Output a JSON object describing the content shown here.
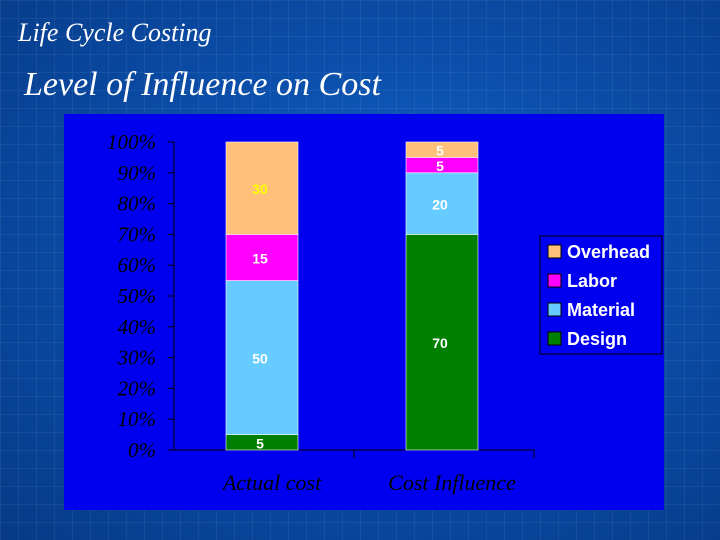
{
  "header": {
    "section_title": "Life Cycle Costing",
    "slide_title": "Level of Influence on Cost"
  },
  "colors": {
    "background": "#0b4eaa",
    "plot_area": "#0000ee",
    "overhead": "#ffc07a",
    "labor": "#ff00ff",
    "material": "#66ccff",
    "design": "#008000",
    "data_label": "#ffffff",
    "overhead_label": "#ffff00"
  },
  "chart_data": {
    "type": "bar",
    "stacked": true,
    "title": "Level of Influence on Cost",
    "categories": [
      "Actual cost",
      "Cost Influence"
    ],
    "series": [
      {
        "name": "Design",
        "values": [
          5,
          70
        ]
      },
      {
        "name": "Material",
        "values": [
          50,
          20
        ]
      },
      {
        "name": "Labor",
        "values": [
          15,
          5
        ]
      },
      {
        "name": "Overhead",
        "values": [
          30,
          5
        ]
      }
    ],
    "yticks": [
      "0%",
      "10%",
      "20%",
      "30%",
      "40%",
      "50%",
      "60%",
      "70%",
      "80%",
      "90%",
      "100%"
    ],
    "ylim": [
      0,
      100
    ],
    "legend": {
      "position": "right",
      "entries": [
        "Overhead",
        "Labor",
        "Material",
        "Design"
      ]
    }
  }
}
